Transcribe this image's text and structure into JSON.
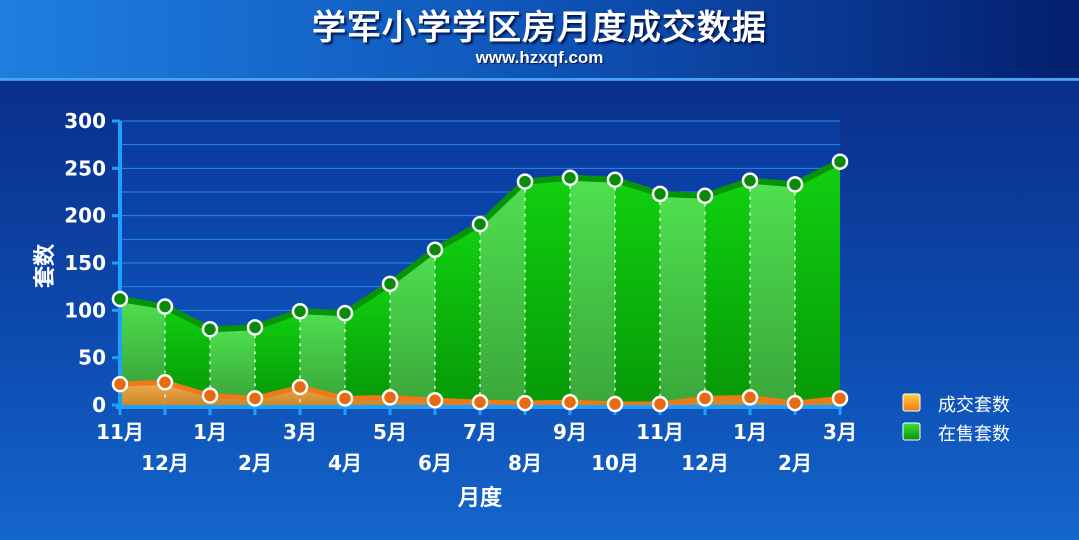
{
  "header": {
    "title": "学军小学学区房月度成交数据",
    "subtitle": "www.hzxqf.com"
  },
  "colors": {
    "sold": "#f07818",
    "sold_fill": "#f5a53a",
    "listed": "#0bbf0b",
    "listed_fill": "#33cc33",
    "grid": "#2a8ae6",
    "axis": "#1ea0ff"
  },
  "chart_data": {
    "type": "area",
    "title": "学军小学学区房月度成交数据",
    "xlabel": "月度",
    "ylabel": "套数",
    "ylim": [
      0,
      300
    ],
    "yticks": [
      0,
      50,
      100,
      150,
      200,
      250,
      300
    ],
    "categories": [
      "11月",
      "12月",
      "1月",
      "2月",
      "3月",
      "4月",
      "5月",
      "6月",
      "7月",
      "8月",
      "9月",
      "10月",
      "11月",
      "12月",
      "1月",
      "2月",
      "3月"
    ],
    "series": [
      {
        "name": "成交套数",
        "values": [
          22,
          24,
          10,
          7,
          19,
          7,
          8,
          5,
          3,
          2,
          3,
          1,
          1,
          7,
          8,
          2,
          7
        ]
      },
      {
        "name": "在售套数",
        "values": [
          112,
          104,
          80,
          82,
          99,
          97,
          128,
          164,
          191,
          236,
          240,
          238,
          223,
          221,
          237,
          233,
          257
        ]
      }
    ],
    "legend": "right",
    "grid": true
  }
}
